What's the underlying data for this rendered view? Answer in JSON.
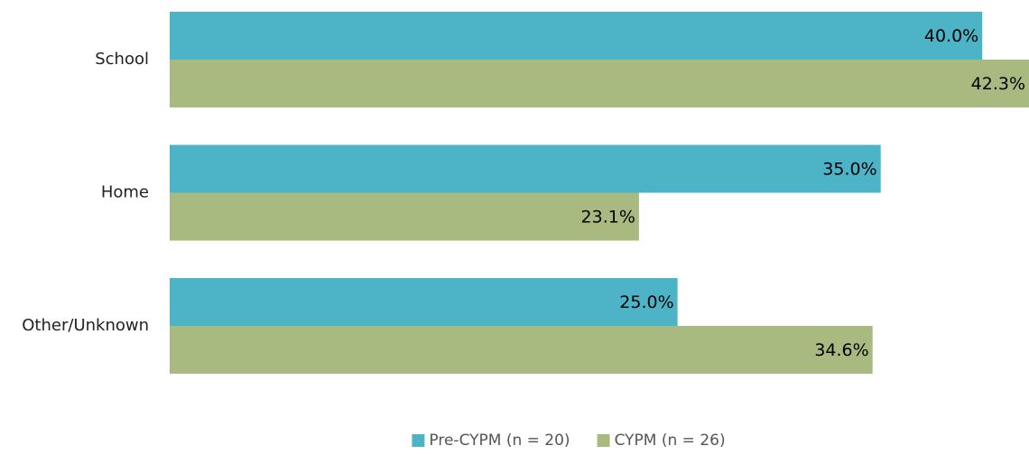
{
  "chart_data": {
    "type": "barh",
    "categories": [
      "School",
      "Home",
      "Other/Unknown"
    ],
    "series": [
      {
        "name": "Pre-CYPM (n = 20)",
        "color": "#4db3c7",
        "values": [
          40.0,
          35.0,
          25.0
        ],
        "value_labels": [
          "40.0%",
          "35.0%",
          "25.0%"
        ]
      },
      {
        "name": "CYPM (n = 26)",
        "color": "#a9ba80",
        "values": [
          42.3,
          23.1,
          34.6
        ],
        "value_labels": [
          "42.3%",
          "23.1%",
          "34.6%"
        ]
      }
    ],
    "legend": "bottom"
  }
}
